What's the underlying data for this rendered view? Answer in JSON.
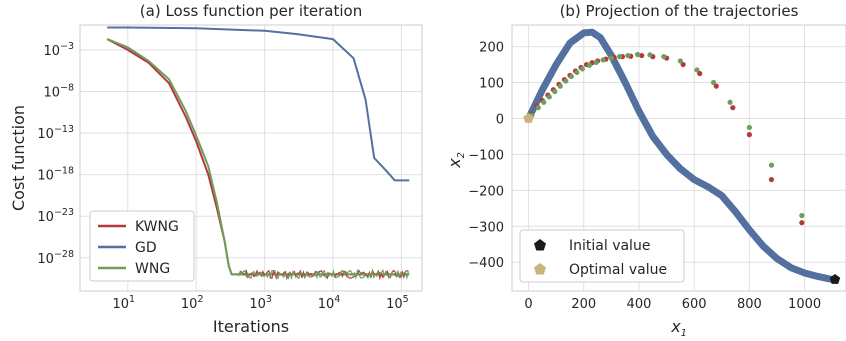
{
  "chart_data": [
    {
      "type": "line",
      "title": "(a) Loss function per iteration",
      "xlabel": "Iterations",
      "ylabel": "Cost function",
      "x_scale": "log",
      "y_scale": "log",
      "xlim": [
        2,
        200000
      ],
      "ylim": [
        1e-32,
        1.0
      ],
      "x_ticks": [
        {
          "base": "10",
          "exp": "1",
          "value": 10
        },
        {
          "base": "10",
          "exp": "2",
          "value": 100
        },
        {
          "base": "10",
          "exp": "3",
          "value": 1000
        },
        {
          "base": "10",
          "exp": "4",
          "value": 10000
        },
        {
          "base": "10",
          "exp": "5",
          "value": 100000
        }
      ],
      "y_ticks": [
        {
          "base": "10",
          "exp": "−3",
          "value": 0.001
        },
        {
          "base": "10",
          "exp": "−8",
          "value": 1e-08
        },
        {
          "base": "10",
          "exp": "−13",
          "value": 1e-13
        },
        {
          "base": "10",
          "exp": "−18",
          "value": 1e-18
        },
        {
          "base": "10",
          "exp": "−23",
          "value": 1e-23
        },
        {
          "base": "10",
          "exp": "−28",
          "value": 1e-28
        }
      ],
      "grid": true,
      "legend_position": "lower-left",
      "series": [
        {
          "name": "KWNG",
          "color": "#b5383c",
          "x": [
            5,
            10,
            20,
            40,
            70,
            100,
            150,
            200,
            260,
            300,
            330,
            350,
            400,
            1000,
            10000,
            100000,
            130000
          ],
          "y": [
            0.02,
            0.001,
            3e-05,
            1e-07,
            1e-11,
            1e-14,
            1e-18,
            1e-22,
            1e-26,
            1e-29,
            1e-30,
            1e-30,
            1e-30,
            1e-30,
            1e-30,
            1e-30,
            1e-30
          ]
        },
        {
          "name": "GD",
          "color": "#5470a0",
          "x": [
            5,
            10,
            100,
            1000,
            3000,
            10000,
            20000,
            30000,
            40000,
            60000,
            80000,
            100000,
            130000
          ],
          "y": [
            0.5,
            0.5,
            0.4,
            0.2,
            0.08,
            0.02,
            0.0001,
            1e-09,
            1e-16,
            3e-18,
            2e-19,
            2e-19,
            2e-19
          ]
        },
        {
          "name": "WNG",
          "color": "#6d9e5b",
          "x": [
            5,
            10,
            20,
            40,
            70,
            100,
            150,
            200,
            260,
            300,
            330,
            350,
            400,
            1000,
            10000,
            100000,
            130000
          ],
          "y": [
            0.02,
            0.002,
            5e-05,
            3e-07,
            5e-11,
            5e-14,
            1e-17,
            5e-22,
            1e-26,
            1e-29,
            1e-30,
            1e-30,
            1e-30,
            1e-30,
            1e-30,
            1e-30,
            1e-30
          ]
        }
      ]
    },
    {
      "type": "scatter",
      "title": "(b) Projection of the trajectories",
      "xlabel": "x",
      "xlabel_sub": "1",
      "ylabel": "x",
      "ylabel_sub": "2",
      "xlim": [
        -60,
        1150
      ],
      "ylim": [
        -480,
        260
      ],
      "x_ticks": [
        0,
        200,
        400,
        600,
        800,
        1000
      ],
      "y_ticks": [
        200,
        100,
        0,
        -100,
        -200,
        -300,
        -400
      ],
      "grid": true,
      "legend_position": "lower-left",
      "gd_path": {
        "color": "#5470a0",
        "points": [
          [
            0,
            0
          ],
          [
            50,
            80
          ],
          [
            100,
            150
          ],
          [
            150,
            210
          ],
          [
            200,
            238
          ],
          [
            230,
            240
          ],
          [
            260,
            225
          ],
          [
            300,
            175
          ],
          [
            350,
            100
          ],
          [
            400,
            20
          ],
          [
            450,
            -50
          ],
          [
            500,
            -100
          ],
          [
            550,
            -140
          ],
          [
            600,
            -170
          ],
          [
            650,
            -190
          ],
          [
            700,
            -215
          ],
          [
            750,
            -260
          ],
          [
            800,
            -310
          ],
          [
            850,
            -355
          ],
          [
            900,
            -390
          ],
          [
            950,
            -415
          ],
          [
            1000,
            -430
          ],
          [
            1050,
            -440
          ],
          [
            1100,
            -448
          ]
        ]
      },
      "kwng_points": {
        "color": "#b5383c",
        "points": [
          [
            10,
            10
          ],
          [
            30,
            35
          ],
          [
            50,
            50
          ],
          [
            70,
            65
          ],
          [
            90,
            80
          ],
          [
            110,
            95
          ],
          [
            130,
            108
          ],
          [
            150,
            120
          ],
          [
            170,
            132
          ],
          [
            190,
            142
          ],
          [
            210,
            150
          ],
          [
            230,
            155
          ],
          [
            250,
            160
          ],
          [
            280,
            165
          ],
          [
            310,
            170
          ],
          [
            340,
            172
          ],
          [
            370,
            173
          ],
          [
            410,
            175
          ],
          [
            450,
            172
          ],
          [
            500,
            168
          ],
          [
            560,
            150
          ],
          [
            620,
            125
          ],
          [
            680,
            90
          ],
          [
            740,
            30
          ],
          [
            800,
            -45
          ],
          [
            880,
            -170
          ],
          [
            990,
            -290
          ]
        ]
      },
      "wng_points": {
        "color": "#6d9e5b",
        "points": [
          [
            12,
            8
          ],
          [
            35,
            30
          ],
          [
            55,
            45
          ],
          [
            75,
            60
          ],
          [
            95,
            75
          ],
          [
            115,
            90
          ],
          [
            135,
            104
          ],
          [
            155,
            117
          ],
          [
            175,
            128
          ],
          [
            195,
            138
          ],
          [
            220,
            148
          ],
          [
            245,
            156
          ],
          [
            270,
            163
          ],
          [
            300,
            168
          ],
          [
            330,
            172
          ],
          [
            360,
            175
          ],
          [
            395,
            178
          ],
          [
            440,
            177
          ],
          [
            490,
            172
          ],
          [
            550,
            160
          ],
          [
            610,
            135
          ],
          [
            670,
            100
          ],
          [
            730,
            45
          ],
          [
            800,
            -25
          ],
          [
            880,
            -130
          ],
          [
            990,
            -270
          ]
        ]
      },
      "initial_value": {
        "label": "Initial value",
        "x": 1110,
        "y": -448,
        "color": "#1a1a1a"
      },
      "optimal_value": {
        "label": "Optimal value",
        "x": 0,
        "y": 0,
        "color": "#c9b47a"
      }
    }
  ]
}
